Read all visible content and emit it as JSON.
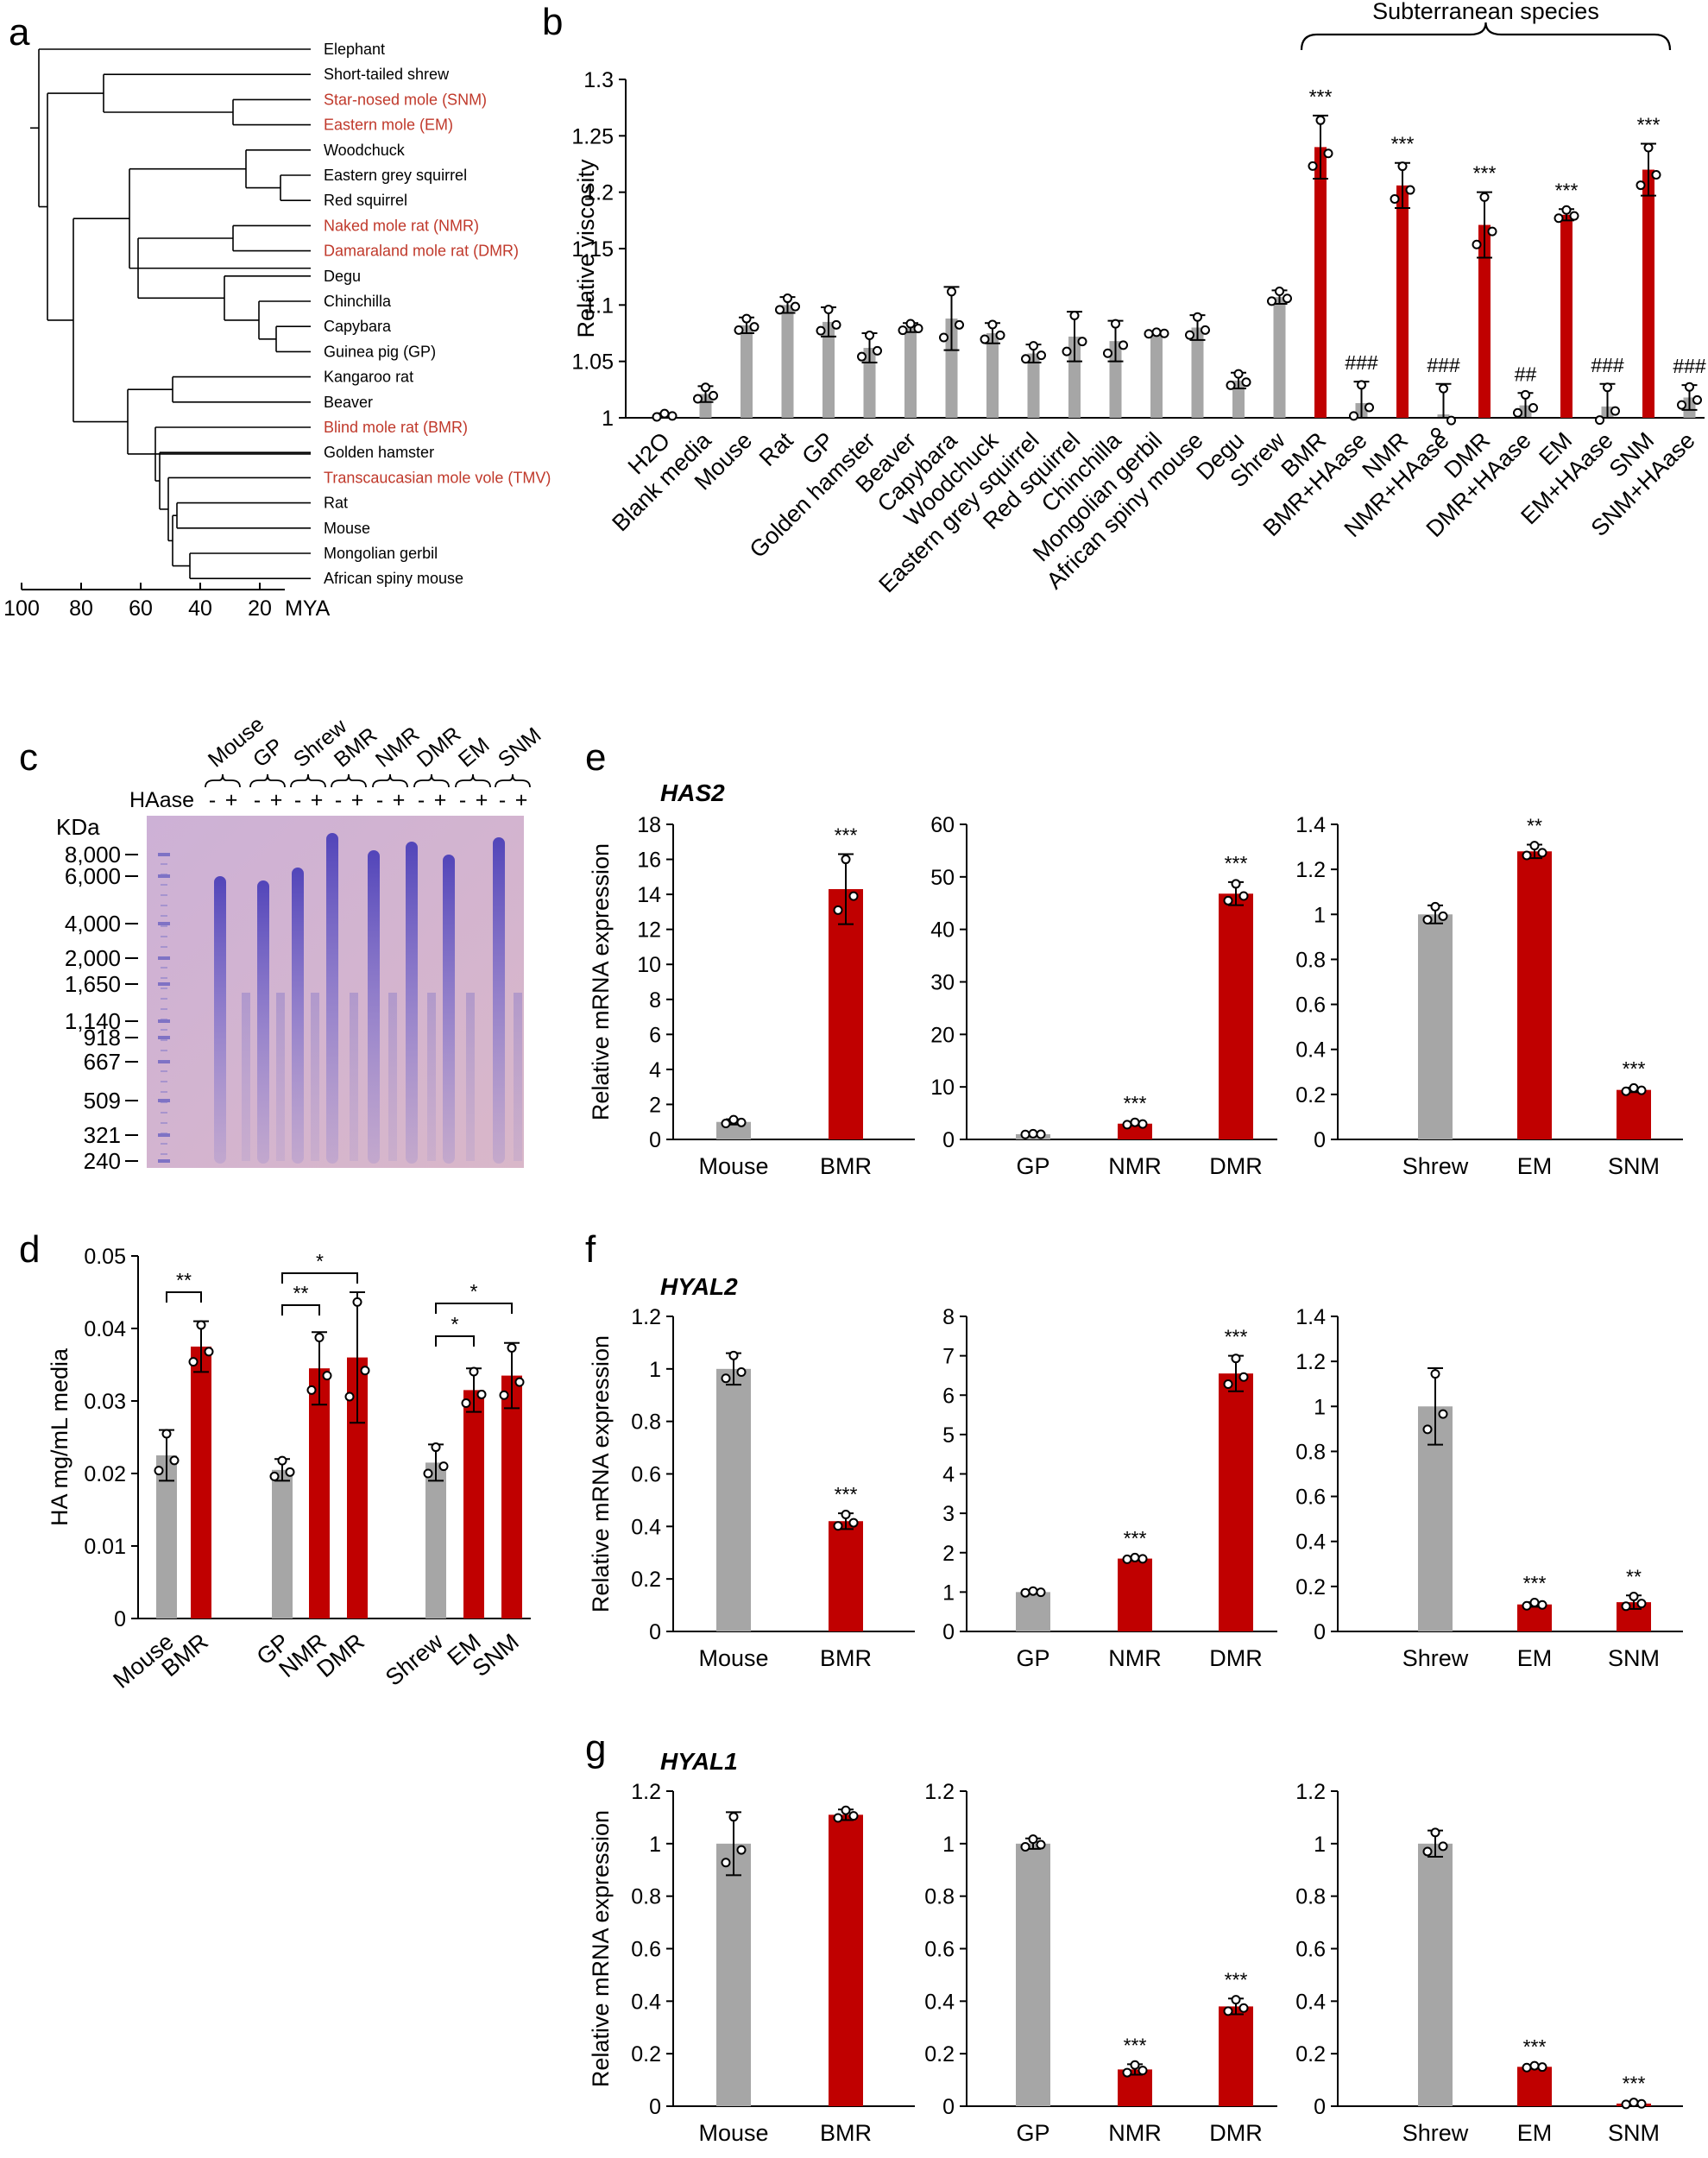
{
  "colors": {
    "control": "#a6a6a6",
    "subterranean": "#c00000",
    "red_label": "#c0392b",
    "axis": "#000000"
  },
  "panel_labels": [
    "a",
    "b",
    "c",
    "d",
    "e",
    "f",
    "g"
  ],
  "panel_a": {
    "taxa": [
      {
        "name": "Elephant",
        "red": false
      },
      {
        "name": "Short-tailed shrew",
        "red": false
      },
      {
        "name": "Star-nosed mole (SNM)",
        "red": true
      },
      {
        "name": "Eastern mole (EM)",
        "red": true
      },
      {
        "name": "Woodchuck",
        "red": false
      },
      {
        "name": "Eastern grey squirrel",
        "red": false
      },
      {
        "name": "Red squirrel",
        "red": false
      },
      {
        "name": "Naked mole rat (NMR)",
        "red": true
      },
      {
        "name": "Damaraland mole rat (DMR)",
        "red": true
      },
      {
        "name": "Degu",
        "red": false
      },
      {
        "name": "Chinchilla",
        "red": false
      },
      {
        "name": "Capybara",
        "red": false
      },
      {
        "name": "Guinea pig (GP)",
        "red": false
      },
      {
        "name": "Kangaroo rat",
        "red": false
      },
      {
        "name": "Beaver",
        "red": false
      },
      {
        "name": "Blind mole rat (BMR)",
        "red": true
      },
      {
        "name": "Golden hamster",
        "red": false
      },
      {
        "name": "Transcaucasian mole vole (TMV)",
        "red": true
      },
      {
        "name": "Rat",
        "red": false
      },
      {
        "name": "Mouse",
        "red": false
      },
      {
        "name": "Mongolian gerbil",
        "red": false
      },
      {
        "name": "African spiny mouse",
        "red": false
      }
    ],
    "axis_ticks": [
      "100",
      "80",
      "60",
      "40",
      "20"
    ],
    "axis_unit": "MYA"
  },
  "panel_c": {
    "header_label": "HAase",
    "lanes": [
      "Mouse",
      "GP",
      "Shrew",
      "BMR",
      "NMR",
      "DMR",
      "EM",
      "SNM"
    ],
    "signs": [
      "-",
      "+"
    ],
    "unit": "KDa",
    "markers": [
      "8,000",
      "6,000",
      "4,000",
      "2,000",
      "1,650",
      "1,140",
      "918",
      "667",
      "509",
      "321",
      "240"
    ]
  },
  "chart_data": [
    {
      "panel": "b",
      "type": "bar",
      "ylabel": "Relative viscosity",
      "ylim": [
        1,
        1.3
      ],
      "yticks": [
        "1",
        "1.05",
        "1.1",
        "1.15",
        "1.2",
        "1.25",
        "1.3"
      ],
      "bracket_label": "Subterranean species",
      "categories": [
        "H2O",
        "Blank media",
        "Mouse",
        "Rat",
        "GP",
        "Golden hamster",
        "Beaver",
        "Capybara",
        "Woodchuck",
        "Eastern grey squirrel",
        "Red squirrel",
        "Chinchilla",
        "Mongolian gerbil",
        "African spiny mouse",
        "Degu",
        "Shrew",
        "BMR",
        "BMR+HAase",
        "NMR",
        "NMR+HAase",
        "DMR",
        "DMR+HAase",
        "EM",
        "EM+HAase",
        "SNM",
        "SNM+HAase"
      ],
      "values": [
        1.002,
        1.021,
        1.082,
        1.1,
        1.085,
        1.062,
        1.08,
        1.088,
        1.075,
        1.057,
        1.072,
        1.068,
        1.075,
        1.08,
        1.033,
        1.107,
        1.24,
        1.013,
        1.206,
        1.003,
        1.171,
        1.011,
        1.18,
        1.01,
        1.22,
        1.018
      ],
      "errors": [
        0.002,
        0.007,
        0.007,
        0.007,
        0.013,
        0.013,
        0.004,
        0.028,
        0.009,
        0.008,
        0.022,
        0.018,
        0.001,
        0.011,
        0.007,
        0.006,
        0.028,
        0.019,
        0.02,
        0.027,
        0.029,
        0.011,
        0.005,
        0.02,
        0.023,
        0.011
      ],
      "colors": [
        "g",
        "g",
        "g",
        "g",
        "g",
        "g",
        "g",
        "g",
        "g",
        "g",
        "g",
        "g",
        "g",
        "g",
        "g",
        "g",
        "r",
        "g",
        "r",
        "g",
        "r",
        "g",
        "r",
        "g",
        "r",
        "g"
      ],
      "annotations": [
        "",
        "",
        "",
        "",
        "",
        "",
        "",
        "",
        "",
        "",
        "",
        "",
        "",
        "",
        "",
        "",
        "***",
        "###",
        "***",
        "###",
        "***",
        "##",
        "***",
        "###",
        "***",
        "###"
      ]
    },
    {
      "panel": "d",
      "type": "bar",
      "ylabel": "HA mg/mL media",
      "ylim": [
        0,
        0.05
      ],
      "yticks": [
        "0",
        "0.01",
        "0.02",
        "0.03",
        "0.04",
        "0.05"
      ],
      "categories": [
        "Mouse",
        "BMR",
        "GP",
        "NMR",
        "DMR",
        "Shrew",
        "EM",
        "SNM"
      ],
      "values": [
        0.0225,
        0.0375,
        0.0205,
        0.0345,
        0.036,
        0.0215,
        0.0315,
        0.0335
      ],
      "errors": [
        0.0035,
        0.0035,
        0.0015,
        0.005,
        0.009,
        0.0025,
        0.003,
        0.0045
      ],
      "colors": [
        "g",
        "r",
        "g",
        "r",
        "r",
        "g",
        "r",
        "r"
      ],
      "comparisons": [
        {
          "from": 0,
          "to": 1,
          "label": "**"
        },
        {
          "from": 2,
          "to": 3,
          "label": "**"
        },
        {
          "from": 2,
          "to": 4,
          "label": "*"
        },
        {
          "from": 5,
          "to": 6,
          "label": "*"
        },
        {
          "from": 5,
          "to": 7,
          "label": "*"
        }
      ]
    },
    {
      "panel": "e",
      "type": "bar",
      "gene": "HAS2",
      "ylabel": "Relative mRNA expression",
      "subplots": [
        {
          "categories": [
            "Mouse",
            "BMR"
          ],
          "values": [
            1.0,
            14.3
          ],
          "errors": [
            0.15,
            2.0
          ],
          "colors": [
            "g",
            "r"
          ],
          "annotations": [
            "",
            "***"
          ],
          "ylim": [
            0,
            18
          ],
          "yticks": [
            "0",
            "2",
            "4",
            "6",
            "8",
            "10",
            "12",
            "14",
            "16",
            "18"
          ]
        },
        {
          "categories": [
            "GP",
            "NMR",
            "DMR"
          ],
          "values": [
            1.0,
            3.0,
            46.8
          ],
          "errors": [
            0.1,
            0.3,
            2.2
          ],
          "colors": [
            "g",
            "r",
            "r"
          ],
          "annotations": [
            "",
            "***",
            "***"
          ],
          "ylim": [
            0,
            60
          ],
          "yticks": [
            "0",
            "10",
            "20",
            "30",
            "40",
            "50",
            "60"
          ]
        },
        {
          "categories": [
            "Shrew",
            "EM",
            "SNM"
          ],
          "values": [
            1.0,
            1.28,
            0.22
          ],
          "errors": [
            0.04,
            0.03,
            0.01
          ],
          "colors": [
            "g",
            "r",
            "r"
          ],
          "annotations": [
            "",
            "**",
            "***"
          ],
          "ylim": [
            0,
            1.4
          ],
          "yticks": [
            "0",
            "0.2",
            "0.4",
            "0.6",
            "0.8",
            "1",
            "1.2",
            "1.4"
          ]
        }
      ]
    },
    {
      "panel": "f",
      "type": "bar",
      "gene": "HYAL2",
      "ylabel": "Relative mRNA expression",
      "subplots": [
        {
          "categories": [
            "Mouse",
            "BMR"
          ],
          "values": [
            1.0,
            0.42
          ],
          "errors": [
            0.06,
            0.03
          ],
          "colors": [
            "g",
            "r"
          ],
          "annotations": [
            "",
            "***"
          ],
          "ylim": [
            0,
            1.2
          ],
          "yticks": [
            "0",
            "0.2",
            "0.4",
            "0.6",
            "0.8",
            "1",
            "1.2"
          ]
        },
        {
          "categories": [
            "GP",
            "NMR",
            "DMR"
          ],
          "values": [
            1.0,
            1.85,
            6.55
          ],
          "errors": [
            0.03,
            0.03,
            0.45
          ],
          "colors": [
            "g",
            "r",
            "r"
          ],
          "annotations": [
            "",
            "***",
            "***"
          ],
          "ylim": [
            0,
            8
          ],
          "yticks": [
            "0",
            "1",
            "2",
            "3",
            "4",
            "5",
            "6",
            "7",
            "8"
          ]
        },
        {
          "categories": [
            "Shrew",
            "EM",
            "SNM"
          ],
          "values": [
            1.0,
            0.12,
            0.13
          ],
          "errors": [
            0.17,
            0.01,
            0.03
          ],
          "colors": [
            "g",
            "r",
            "r"
          ],
          "annotations": [
            "",
            "***",
            "**"
          ],
          "ylim": [
            0,
            1.4
          ],
          "yticks": [
            "0",
            "0.2",
            "0.4",
            "0.6",
            "0.8",
            "1",
            "1.2",
            "1.4"
          ]
        }
      ]
    },
    {
      "panel": "g",
      "type": "bar",
      "gene": "HYAL1",
      "ylabel": "Relative mRNA expression",
      "subplots": [
        {
          "categories": [
            "Mouse",
            "BMR"
          ],
          "values": [
            1.0,
            1.11
          ],
          "errors": [
            0.12,
            0.02
          ],
          "colors": [
            "g",
            "r"
          ],
          "annotations": [
            "",
            ""
          ],
          "ylim": [
            0,
            1.2
          ],
          "yticks": [
            "0",
            "0.2",
            "0.4",
            "0.6",
            "0.8",
            "1",
            "1.2"
          ]
        },
        {
          "categories": [
            "GP",
            "NMR",
            "DMR"
          ],
          "values": [
            1.0,
            0.14,
            0.38
          ],
          "errors": [
            0.02,
            0.02,
            0.03
          ],
          "colors": [
            "g",
            "r",
            "r"
          ],
          "annotations": [
            "",
            "***",
            "***"
          ],
          "ylim": [
            0,
            1.2
          ],
          "yticks": [
            "0",
            "0.2",
            "0.4",
            "0.6",
            "0.8",
            "1",
            "1.2"
          ]
        },
        {
          "categories": [
            "Shrew",
            "EM",
            "SNM"
          ],
          "values": [
            1.0,
            0.15,
            0.01
          ],
          "errors": [
            0.05,
            0.005,
            0.005
          ],
          "colors": [
            "g",
            "r",
            "r"
          ],
          "annotations": [
            "",
            "***",
            "***"
          ],
          "ylim": [
            0,
            1.2
          ],
          "yticks": [
            "0",
            "0.2",
            "0.4",
            "0.6",
            "0.8",
            "1",
            "1.2"
          ]
        }
      ]
    }
  ]
}
